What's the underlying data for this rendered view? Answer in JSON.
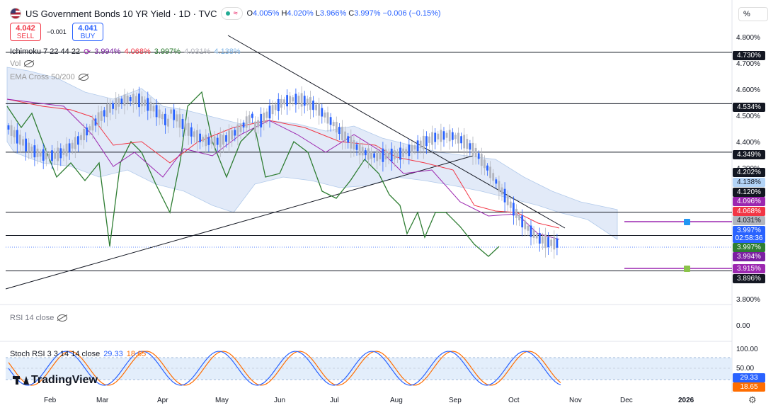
{
  "header": {
    "title": "US Government Bonds 10 YR Yield · 1D · TVC",
    "ohlc": {
      "o_label": "O",
      "o": "4.005%",
      "h_label": "H",
      "h": "4.020%",
      "l_label": "L",
      "l": "3.966%",
      "c_label": "C",
      "c": "3.997%",
      "change": "−0.006 (−0.15%)"
    },
    "scale_mode": "%"
  },
  "trade": {
    "sell_price": "4.042",
    "sell_label": "SELL",
    "spread": "−0.001",
    "buy_price": "4.041",
    "buy_label": "BUY"
  },
  "indicators": {
    "ichimoku": {
      "name": "Ichimoku 7 22 44 22",
      "v1": "3.994%",
      "v2": "4.068%",
      "v3": "3.997%",
      "v4": "4.031%",
      "v5": "4.138%"
    },
    "vol": "Vol",
    "ema_cross": "EMA Cross 50/200",
    "rsi": "RSI 14 close",
    "stoch": {
      "name": "Stoch RSI 3 3 14 14 close",
      "k": "29.33",
      "d": "18.65"
    }
  },
  "price_axis": {
    "ticks": [
      "4.800%",
      "4.700%",
      "4.600%",
      "4.500%",
      "4.400%",
      "4.300%",
      "3.800%"
    ],
    "labels": [
      {
        "text": "4.730%",
        "bg": "#131722",
        "fg": "#ffffff"
      },
      {
        "text": "4.534%",
        "bg": "#131722",
        "fg": "#ffffff"
      },
      {
        "text": "4.349%",
        "bg": "#131722",
        "fg": "#ffffff"
      },
      {
        "text": "4.202%",
        "bg": "#131722",
        "fg": "#ffffff"
      },
      {
        "text": "4.138%",
        "bg": "#b3d4f7",
        "fg": "#131722"
      },
      {
        "text": "4.120%",
        "bg": "#131722",
        "fg": "#ffffff"
      },
      {
        "text": "4.096%",
        "bg": "#9c27b0",
        "fg": "#ffffff"
      },
      {
        "text": "4.068%",
        "bg": "#f23645",
        "fg": "#ffffff"
      },
      {
        "text": "4.031%",
        "bg": "#b2b5be",
        "fg": "#131722"
      },
      {
        "text": "3.997%",
        "bg": "#2962ff",
        "fg": "#ffffff"
      },
      {
        "text": "02:58:36",
        "bg": "#2962ff",
        "fg": "#ffffff"
      },
      {
        "text": "3.997%",
        "bg": "#2e7d32",
        "fg": "#ffffff"
      },
      {
        "text": "3.994%",
        "bg": "#7b1fa2",
        "fg": "#ffffff"
      },
      {
        "text": "3.915%",
        "bg": "#9c27b0",
        "fg": "#ffffff"
      },
      {
        "text": "3.896%",
        "bg": "#131722",
        "fg": "#ffffff"
      }
    ]
  },
  "horizontal_levels": [
    4.73,
    4.534,
    4.349,
    4.12,
    4.031,
    3.896
  ],
  "rsi_axis": {
    "tick": "0.00"
  },
  "stoch_axis": {
    "ticks": [
      "100.00",
      "50.00"
    ]
  },
  "time_axis": [
    "Feb",
    "Mar",
    "Apr",
    "May",
    "Jun",
    "Jul",
    "Aug",
    "Sep",
    "Oct",
    "Nov",
    "Dec",
    "2026"
  ],
  "alerts": [
    {
      "value": 4.031,
      "badge": "1"
    },
    {
      "value": 3.915,
      "badge": "✓"
    }
  ],
  "brand": "TradingView",
  "colors": {
    "up": "#b2b5be",
    "down": "#2962ff",
    "accent": "#2962ff",
    "cloud": "#bbd2f0"
  }
}
